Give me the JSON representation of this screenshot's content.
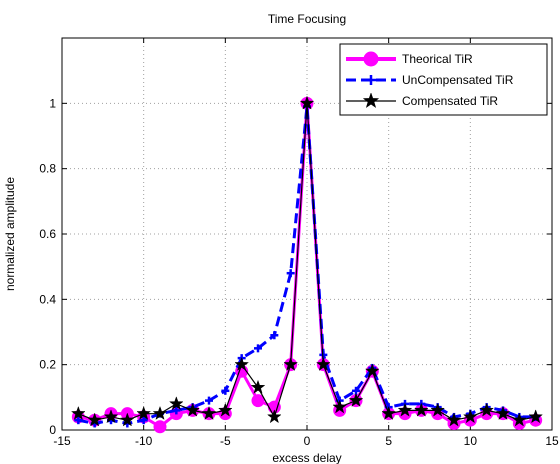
{
  "chart_data": {
    "type": "line",
    "title": "Time Focusing",
    "xlabel": "excess delay",
    "ylabel": "normalized amplitude",
    "xlim": [
      -15,
      15
    ],
    "ylim": [
      0,
      1.2
    ],
    "grid": true,
    "legend_position": "top-right",
    "xticks": [
      -15,
      -10,
      -5,
      0,
      5,
      10,
      15
    ],
    "xtick_labels": [
      "-15",
      "-10",
      "-5",
      "0",
      "5",
      "10",
      "15"
    ],
    "yticks": [
      0,
      0.2,
      0.4,
      0.6,
      0.8,
      1
    ],
    "ytick_labels": [
      "0",
      "0.2",
      "0.4",
      "0.6",
      "0.8",
      "1"
    ],
    "series": [
      {
        "name": "Theorical TiR",
        "color": "#ff00ff",
        "line_style": "solid",
        "marker": "circle",
        "x": [
          -14,
          -13,
          -12,
          -11,
          -10,
          -9,
          -8,
          -7,
          -6,
          -5,
          -4,
          -3,
          -2,
          -1,
          0,
          1,
          2,
          3,
          4,
          5,
          6,
          7,
          8,
          9,
          10,
          11,
          12,
          13,
          14
        ],
        "y": [
          0.04,
          0.03,
          0.05,
          0.05,
          0.04,
          0.01,
          0.05,
          0.06,
          0.05,
          0.05,
          0.18,
          0.09,
          0.07,
          0.2,
          1.0,
          0.2,
          0.06,
          0.09,
          0.18,
          0.05,
          0.05,
          0.06,
          0.05,
          0.02,
          0.03,
          0.05,
          0.05,
          0.02,
          0.03
        ]
      },
      {
        "name": "UnCompensated TiR",
        "color": "#0000ff",
        "line_style": "dashed",
        "marker": "plus",
        "x": [
          -14,
          -13,
          -12,
          -11,
          -10,
          -9,
          -8,
          -7,
          -6,
          -5,
          -4,
          -3,
          -2,
          -1,
          0,
          1,
          2,
          3,
          4,
          5,
          6,
          7,
          8,
          9,
          10,
          11,
          12,
          13,
          14
        ],
        "y": [
          0.03,
          0.02,
          0.03,
          0.02,
          0.03,
          0.05,
          0.06,
          0.07,
          0.09,
          0.12,
          0.22,
          0.25,
          0.29,
          0.48,
          0.99,
          0.23,
          0.09,
          0.12,
          0.19,
          0.07,
          0.08,
          0.08,
          0.07,
          0.04,
          0.05,
          0.07,
          0.06,
          0.04,
          0.04
        ]
      },
      {
        "name": "Compensated TiR",
        "color": "#000000",
        "line_style": "solid",
        "marker": "star",
        "x": [
          -14,
          -13,
          -12,
          -11,
          -10,
          -9,
          -8,
          -7,
          -6,
          -5,
          -4,
          -3,
          -2,
          -1,
          0,
          1,
          2,
          3,
          4,
          5,
          6,
          7,
          8,
          9,
          10,
          11,
          12,
          13,
          14
        ],
        "y": [
          0.05,
          0.03,
          0.04,
          0.03,
          0.05,
          0.05,
          0.08,
          0.06,
          0.05,
          0.06,
          0.2,
          0.13,
          0.04,
          0.2,
          1.0,
          0.2,
          0.07,
          0.09,
          0.18,
          0.05,
          0.06,
          0.06,
          0.06,
          0.03,
          0.04,
          0.06,
          0.05,
          0.03,
          0.04
        ]
      }
    ]
  }
}
